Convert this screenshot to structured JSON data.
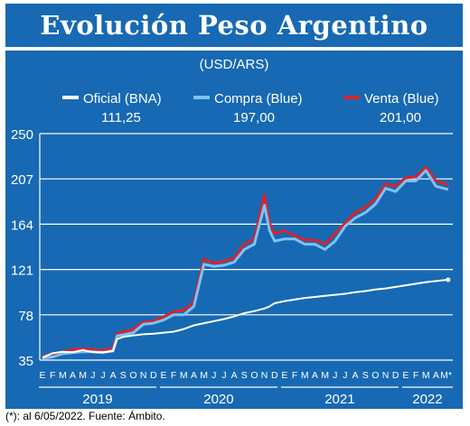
{
  "title": "Evolución Peso Argentino",
  "unit_label": "(USD/ARS)",
  "footnote": "(*): al 6/05/2022.  Fuente: Ámbito.",
  "colors": {
    "background": "#1769b3",
    "oficial": "#ffffff",
    "compra": "#7cc3f2",
    "venta": "#d9232d",
    "grid": "#ffffff"
  },
  "legend": [
    {
      "name": "Oficial (BNA)",
      "value": "111,25",
      "color": "#ffffff"
    },
    {
      "name": "Compra (Blue)",
      "value": "197,00",
      "color": "#7cc3f2"
    },
    {
      "name": "Venta (Blue)",
      "value": "201,00",
      "color": "#d9232d"
    }
  ],
  "chart_data": {
    "type": "line",
    "ylim": [
      35,
      250
    ],
    "yticks": [
      "250",
      "207",
      "164",
      "121",
      "78",
      "35"
    ],
    "grid": true,
    "legend_position": "top",
    "month_labels": [
      "E",
      "F",
      "M",
      "A",
      "M",
      "J",
      "J",
      "A",
      "S",
      "O",
      "N",
      "D",
      "E",
      "F",
      "M",
      "A",
      "M",
      "J",
      "J",
      "A",
      "S",
      "O",
      "N",
      "D",
      "E",
      "F",
      "M",
      "A",
      "M",
      "J",
      "J",
      "A",
      "S",
      "O",
      "N",
      "D",
      "E",
      "F",
      "M",
      "A",
      "M*"
    ],
    "year_labels": [
      "2019",
      "2020",
      "2021",
      "2022"
    ],
    "x": [
      0,
      1,
      2,
      3,
      4,
      5,
      6,
      7,
      7.4,
      8,
      9,
      10,
      11,
      12,
      13,
      14,
      15,
      16,
      17,
      18,
      19,
      20,
      21,
      22,
      22.5,
      23,
      24,
      25,
      26,
      27,
      28,
      29,
      30,
      31,
      32,
      33,
      34,
      35,
      36,
      37,
      38,
      39,
      40.2
    ],
    "series": [
      {
        "name": "Oficial (BNA)",
        "values": [
          37.5,
          41.5,
          43,
          42.5,
          44.5,
          42.5,
          42.5,
          43.5,
          55,
          57,
          58.5,
          59.5,
          60,
          61,
          62,
          64.5,
          68,
          70,
          72,
          74,
          76.5,
          79.5,
          81.5,
          84,
          86,
          89,
          91,
          92.5,
          94,
          95,
          96,
          97,
          98,
          99.5,
          100.5,
          102,
          103,
          104.5,
          106,
          107.5,
          109,
          110,
          111.25
        ]
      },
      {
        "name": "Compra (Blue)",
        "values": [
          37,
          38,
          41,
          42,
          43,
          43,
          42,
          44,
          58,
          59,
          61,
          69,
          70,
          73,
          78,
          78,
          86,
          126,
          124,
          125,
          128,
          140,
          145,
          182,
          158,
          148,
          150,
          150,
          145,
          145,
          140,
          148,
          162,
          170,
          175,
          183,
          198,
          195,
          205,
          205,
          215,
          200,
          197
        ]
      },
      {
        "name": "Venta (Blue)",
        "values": [
          39,
          40,
          43,
          45,
          46,
          45,
          44,
          47,
          60,
          62,
          64,
          71,
          72,
          76,
          81,
          82,
          90,
          131,
          127,
          129,
          132,
          145,
          150,
          192,
          165,
          155,
          158,
          153,
          149,
          149,
          145,
          155,
          165,
          175,
          180,
          188,
          202,
          200,
          208,
          209,
          218,
          205,
          201
        ]
      }
    ]
  }
}
